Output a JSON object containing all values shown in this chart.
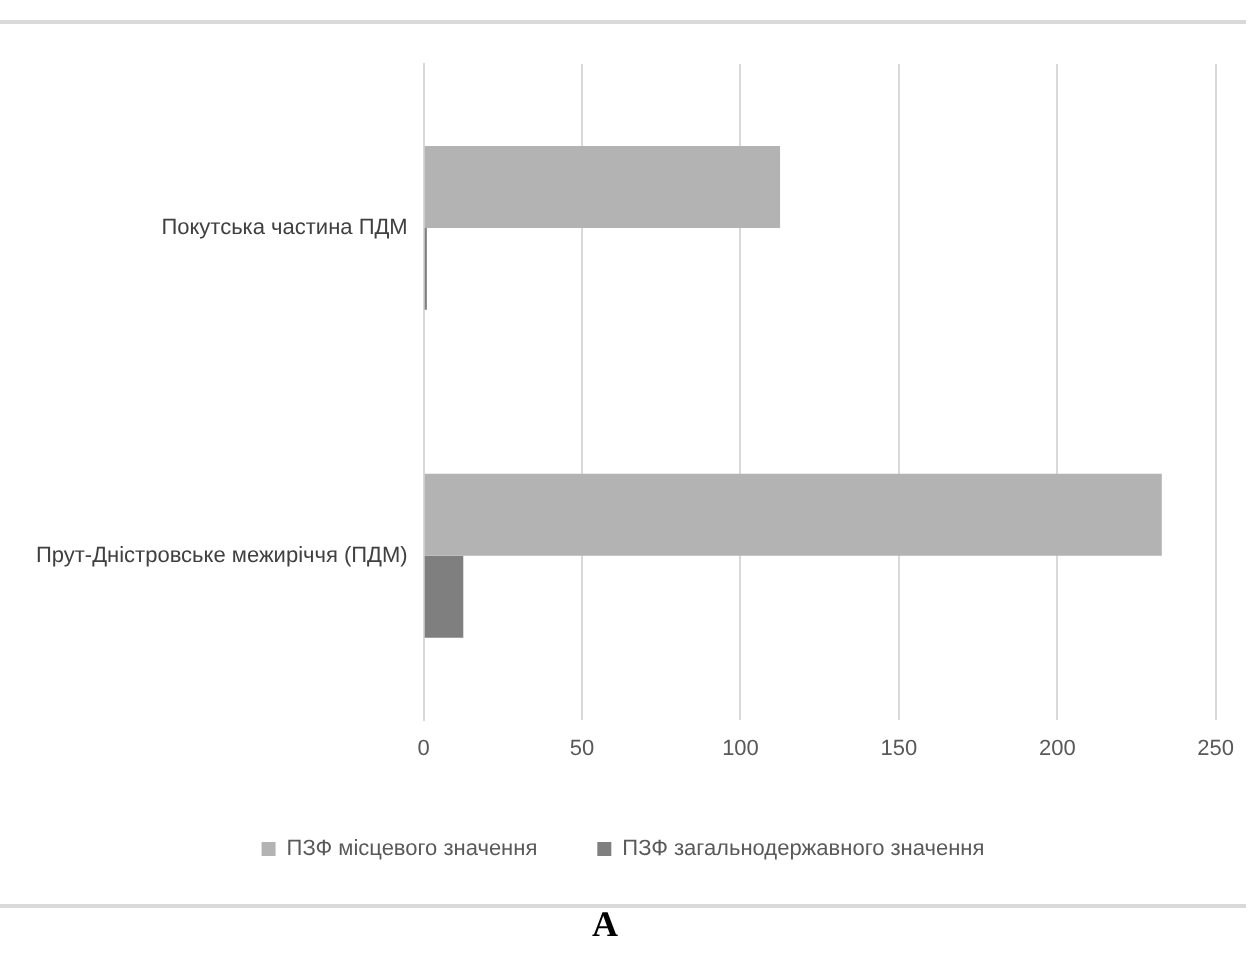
{
  "chart_data": {
    "type": "bar",
    "orientation": "horizontal",
    "categories": [
      "Покутська частина ПДМ",
      "Прут-Дністровське межиріччя (ПДМ)"
    ],
    "series": [
      {
        "name": "ПЗФ місцевого значення",
        "color": "#b3b3b3",
        "values": [
          112.5,
          233
        ]
      },
      {
        "name": "ПЗФ загальнодержавного значення",
        "color": "#7f7f7f",
        "values": [
          1,
          12.5
        ]
      }
    ],
    "xlim": [
      0,
      250
    ],
    "xticks": [
      0,
      50,
      100,
      150,
      200,
      250
    ],
    "grid": "x",
    "legend": "bottom",
    "annotations": [
      "A"
    ]
  }
}
